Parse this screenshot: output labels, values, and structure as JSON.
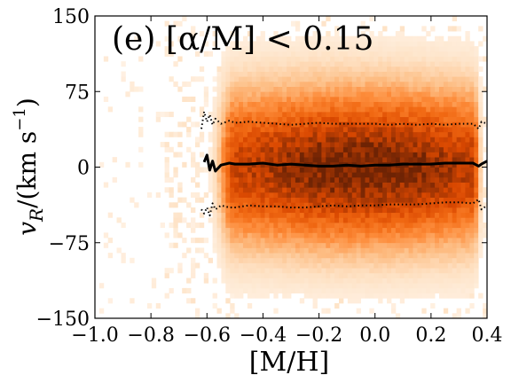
{
  "chart_data": {
    "type": "heatmap",
    "title": "(e) [α/M] < 0.15",
    "xlabel": "[M/H]",
    "ylabel_main": "v",
    "ylabel_sub": "R",
    "ylabel_unit": "/(km s",
    "ylabel_exp": "−1",
    "ylabel_close": ")",
    "xlim": [
      -1.0,
      0.4
    ],
    "ylim": [
      -150,
      150
    ],
    "x_ticks": [
      -1.0,
      -0.8,
      -0.6,
      -0.4,
      -0.2,
      0.0,
      0.2,
      0.4
    ],
    "x_tick_labels": [
      "−1.0",
      "−0.8",
      "−0.6",
      "−0.4",
      "−0.2",
      "0.0",
      "0.2",
      "0.4"
    ],
    "y_ticks": [
      -150,
      -75,
      0,
      75,
      150
    ],
    "y_tick_labels": [
      "−150",
      "−75",
      "0",
      "75",
      "150"
    ],
    "colormap": "Oranges",
    "density_peak": {
      "x": -0.05,
      "y": 0
    },
    "density_core_x_range": [
      -0.5,
      0.35
    ],
    "series": [
      {
        "name": "",
        "style": "solid",
        "x": [
          -0.61,
          -0.6,
          -0.59,
          -0.58,
          -0.57,
          -0.55,
          -0.52,
          -0.5,
          -0.45,
          -0.4,
          -0.35,
          -0.3,
          -0.25,
          -0.2,
          -0.15,
          -0.1,
          -0.05,
          0.0,
          0.05,
          0.1,
          0.15,
          0.2,
          0.25,
          0.3,
          0.35,
          0.37,
          0.38,
          0.4
        ],
        "y": [
          5,
          12,
          -3,
          6,
          -4,
          2,
          4,
          3,
          3,
          4,
          2,
          3,
          2,
          1,
          1,
          2,
          1,
          2,
          2,
          3,
          3,
          3,
          4,
          4,
          4,
          1,
          3,
          6
        ]
      },
      {
        "name": "",
        "style": "dotted",
        "x": [
          -0.62,
          -0.61,
          -0.6,
          -0.59,
          -0.58,
          -0.57,
          -0.55,
          -0.52,
          -0.5,
          -0.45,
          -0.4,
          -0.35,
          -0.3,
          -0.25,
          -0.2,
          -0.15,
          -0.1,
          -0.05,
          0.0,
          0.05,
          0.1,
          0.15,
          0.2,
          0.25,
          0.3,
          0.35,
          0.37,
          0.38,
          0.4
        ],
        "y": [
          38,
          55,
          45,
          52,
          42,
          48,
          43,
          46,
          44,
          45,
          44,
          43,
          42,
          43,
          44,
          43,
          43,
          43,
          43,
          42,
          43,
          42,
          43,
          42,
          43,
          43,
          38,
          45,
          43
        ]
      },
      {
        "name": "",
        "style": "dotted",
        "x": [
          -0.62,
          -0.61,
          -0.6,
          -0.59,
          -0.58,
          -0.57,
          -0.55,
          -0.52,
          -0.5,
          -0.45,
          -0.4,
          -0.35,
          -0.3,
          -0.25,
          -0.2,
          -0.15,
          -0.1,
          -0.05,
          0.0,
          0.05,
          0.1,
          0.15,
          0.2,
          0.25,
          0.3,
          0.35,
          0.37,
          0.38,
          0.4
        ],
        "y": [
          -42,
          -46,
          -40,
          -48,
          -36,
          -42,
          -38,
          -40,
          -40,
          -38,
          -39,
          -39,
          -40,
          -40,
          -39,
          -38,
          -39,
          -38,
          -38,
          -37,
          -37,
          -37,
          -36,
          -35,
          -35,
          -36,
          -32,
          -42,
          -38
        ]
      }
    ]
  }
}
